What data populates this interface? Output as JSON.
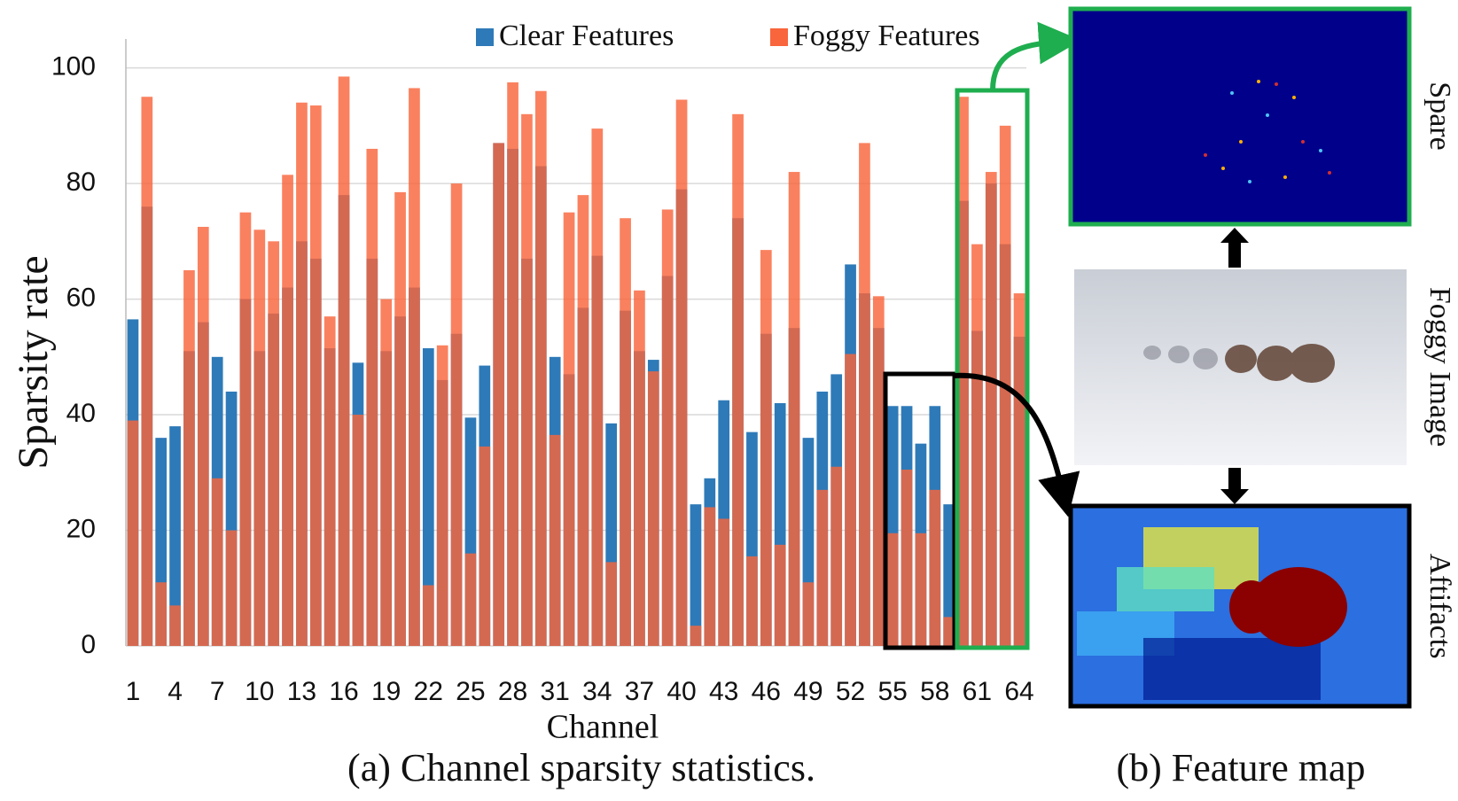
{
  "chart_data": {
    "type": "overlap-bar",
    "y_label": "Sparsity rate",
    "x_label": "Channel",
    "categories": [
      "1",
      null,
      null,
      "4",
      null,
      null,
      "7",
      null,
      null,
      "10",
      null,
      null,
      "13",
      null,
      null,
      "16",
      null,
      null,
      "19",
      null,
      null,
      "22",
      null,
      null,
      "25",
      null,
      null,
      "28",
      null,
      null,
      "31",
      null,
      null,
      "34",
      null,
      null,
      "37",
      null,
      null,
      "40",
      null,
      null,
      "43",
      null,
      null,
      "46",
      null,
      null,
      "49",
      null,
      null,
      "52",
      null,
      null,
      "55",
      null,
      null,
      "58",
      null,
      null,
      "61",
      null,
      null,
      "64"
    ],
    "series": [
      {
        "name": "Clear Features",
        "color": "#2e7ab8",
        "values": [
          56.5,
          76,
          36,
          38,
          51,
          56,
          50,
          44,
          60,
          51,
          57.5,
          62,
          70,
          67,
          51.5,
          78,
          49,
          67,
          51,
          57,
          62,
          51.5,
          46,
          54,
          39.5,
          48.5,
          87,
          86,
          67,
          83,
          50,
          47,
          58.5,
          67.5,
          38.5,
          58,
          51,
          49.5,
          64,
          79,
          24.5,
          29,
          42.5,
          74,
          37,
          54,
          42,
          55,
          36,
          44,
          47,
          66,
          61,
          55,
          41.5,
          41.5,
          35,
          41.5,
          24.5,
          77,
          54.5,
          80,
          69.5,
          53.5
        ]
      },
      {
        "name": "Foggy Features",
        "color": "#f9653c",
        "values": [
          39,
          95,
          11,
          7,
          65,
          72.5,
          29,
          20,
          75,
          72,
          70,
          81.5,
          94,
          93.5,
          57,
          98.5,
          40,
          86,
          60,
          78.5,
          96.5,
          10.5,
          52,
          80,
          16,
          34.5,
          87,
          97.5,
          92,
          96,
          36.5,
          75,
          78,
          89.5,
          14.5,
          74,
          61.5,
          47.5,
          75.5,
          94.5,
          3.5,
          24,
          22,
          92,
          15.5,
          68.5,
          17.5,
          82,
          11,
          27,
          31,
          50.5,
          87,
          60.5,
          19.5,
          30.5,
          19.5,
          27,
          5,
          95,
          69.5,
          82,
          90,
          61
        ]
      }
    ],
    "ylim": [
      0,
      105
    ],
    "yticks": [
      0,
      20,
      40,
      60,
      80,
      100
    ],
    "grid": true
  },
  "caption_a": "(a) Channel sparsity statistics.",
  "panel_b": {
    "caption": "(b) Feature map",
    "labels": [
      "Spare",
      "Foggy Image",
      "Aftifacts"
    ]
  }
}
